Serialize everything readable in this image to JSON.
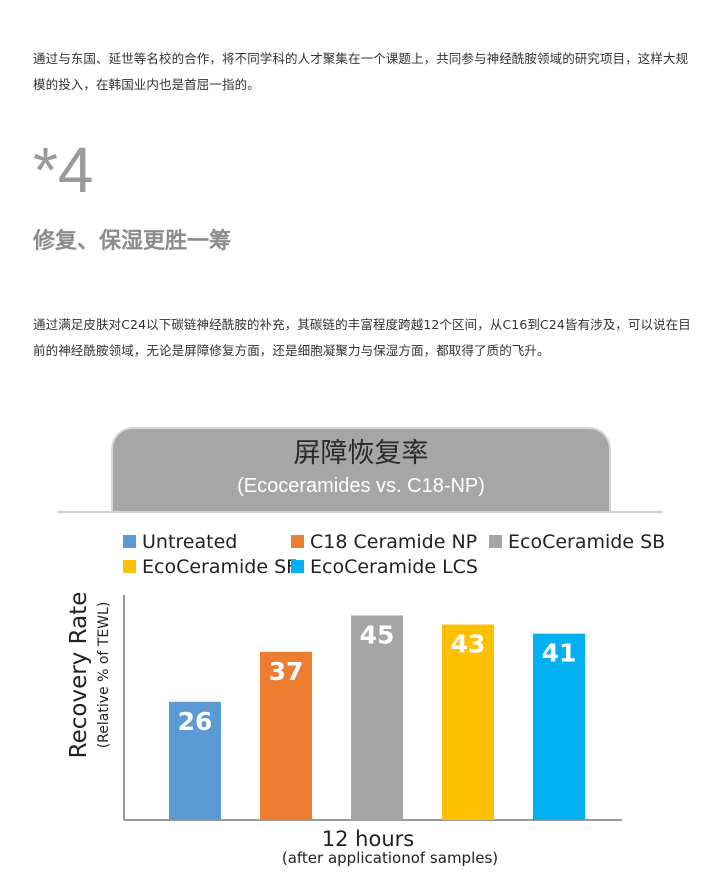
{
  "article": {
    "paragraph1": "通过与东国、延世等名校的合作，将不同学科的人才聚集在一个课题上，共同参与神经酰胺领域的研究项目，这样大规模的投入，在韩国业内也是首屈一指的。",
    "section_number": "*4",
    "section_title": "修复、保湿更胜一筹",
    "paragraph2": "通过满足皮肤对C24以下碳链神经酰胺的补充，其碳链的丰富程度跨越12个区间，从C16到C24皆有涉及，可以说在目前的神经酰胺领域，无论是屏障修复方面，还是细胞凝聚力与保湿方面，都取得了质的飞升。"
  },
  "chart_data": {
    "type": "bar",
    "title": "屏障恢复率",
    "subtitle": "(Ecoceramides vs. C18-NP)",
    "ylabel": "Recovery Rate",
    "ylabel_sub": "(Relative % of TEWL)",
    "xlabel": "12 hours",
    "xlabel_sub": "(after applicationof samples)",
    "categories": [
      "Untreated",
      "C18 Ceramide NP",
      "EcoCeramide SB",
      "EcoCeramide SF",
      "EcoCeramide LCS"
    ],
    "values": [
      26,
      37,
      45,
      43,
      41
    ],
    "colors": [
      "#5b9bd5",
      "#ed7d31",
      "#a5a5a5",
      "#ffc000",
      "#00b0f0"
    ],
    "ylim": [
      0,
      55
    ],
    "legend_position": "top",
    "grid": false
  }
}
